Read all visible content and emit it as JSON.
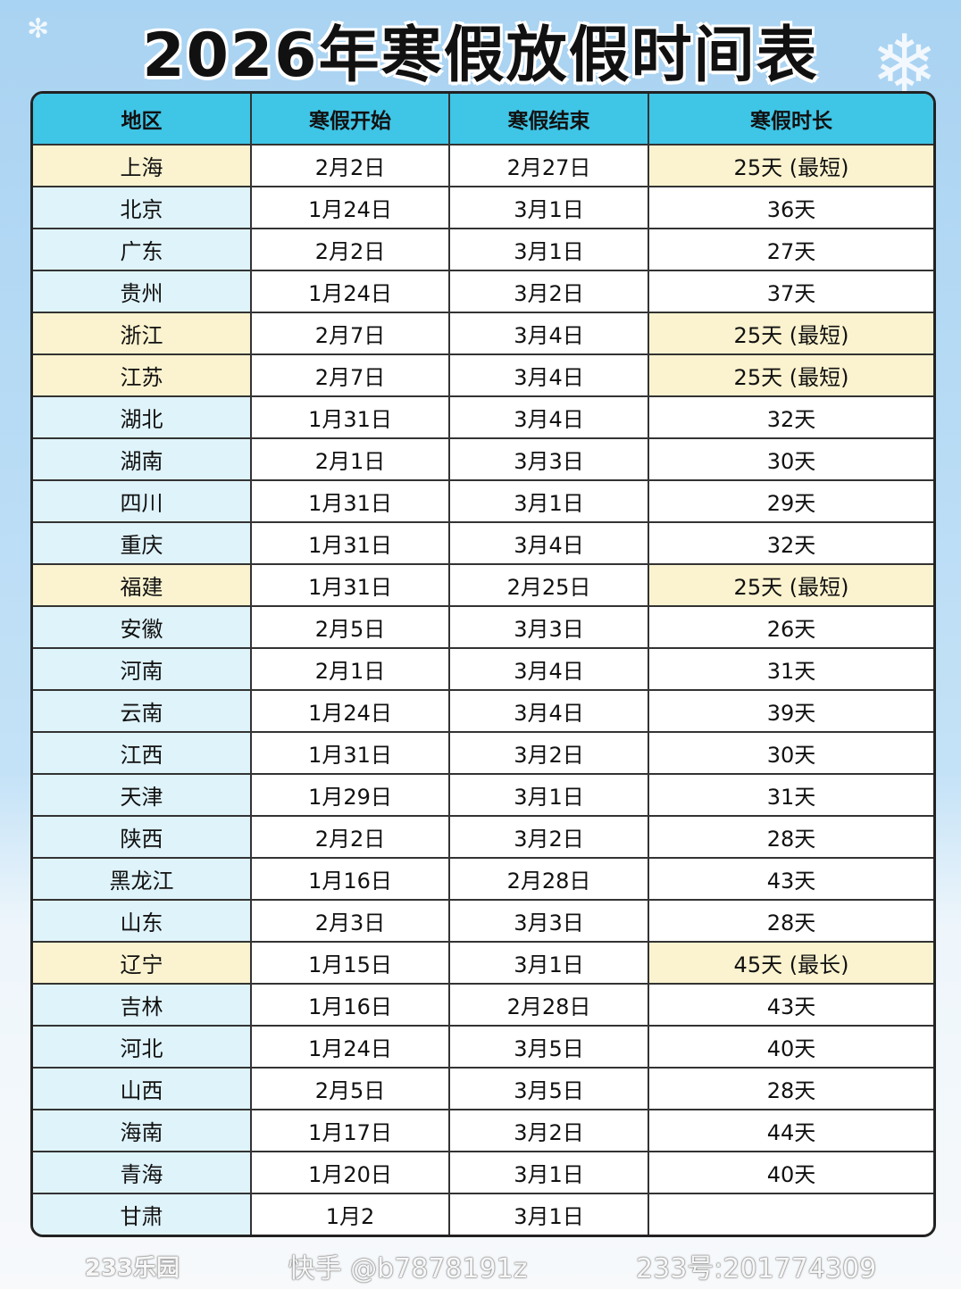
{
  "title": "2026年寒假放假时间表",
  "colors": {
    "header": "#3fc5e6",
    "region_bg": "#dff3fa",
    "highlight": "#fbf3cf"
  },
  "columns": [
    "地区",
    "寒假开始",
    "寒假结束",
    "寒假时长"
  ],
  "rows": [
    {
      "region": "上海",
      "start": "2月2日",
      "end": "2月27日",
      "days": "25天 (最短)",
      "highlight": true
    },
    {
      "region": "北京",
      "start": "1月24日",
      "end": "3月1日",
      "days": "36天"
    },
    {
      "region": "广东",
      "start": "2月2日",
      "end": "3月1日",
      "days": "27天"
    },
    {
      "region": "贵州",
      "start": "1月24日",
      "end": "3月2日",
      "days": "37天"
    },
    {
      "region": "浙江",
      "start": "2月7日",
      "end": "3月4日",
      "days": "25天 (最短)",
      "highlight": true
    },
    {
      "region": "江苏",
      "start": "2月7日",
      "end": "3月4日",
      "days": "25天 (最短)",
      "highlight": true
    },
    {
      "region": "湖北",
      "start": "1月31日",
      "end": "3月4日",
      "days": "32天"
    },
    {
      "region": "湖南",
      "start": "2月1日",
      "end": "3月3日",
      "days": "30天"
    },
    {
      "region": "四川",
      "start": "1月31日",
      "end": "3月1日",
      "days": "29天"
    },
    {
      "region": "重庆",
      "start": "1月31日",
      "end": "3月4日",
      "days": "32天"
    },
    {
      "region": "福建",
      "start": "1月31日",
      "end": "2月25日",
      "days": "25天 (最短)",
      "highlight": true
    },
    {
      "region": "安徽",
      "start": "2月5日",
      "end": "3月3日",
      "days": "26天"
    },
    {
      "region": "河南",
      "start": "2月1日",
      "end": "3月4日",
      "days": "31天"
    },
    {
      "region": "云南",
      "start": "1月24日",
      "end": "3月4日",
      "days": "39天"
    },
    {
      "region": "江西",
      "start": "1月31日",
      "end": "3月2日",
      "days": "30天"
    },
    {
      "region": "天津",
      "start": "1月29日",
      "end": "3月1日",
      "days": "31天"
    },
    {
      "region": "陕西",
      "start": "2月2日",
      "end": "3月2日",
      "days": "28天"
    },
    {
      "region": "黑龙江",
      "start": "1月16日",
      "end": "2月28日",
      "days": "43天"
    },
    {
      "region": "山东",
      "start": "2月3日",
      "end": "3月3日",
      "days": "28天"
    },
    {
      "region": "辽宁",
      "start": "1月15日",
      "end": "3月1日",
      "days": "45天 (最长)",
      "highlight": true
    },
    {
      "region": "吉林",
      "start": "1月16日",
      "end": "2月28日",
      "days": "43天"
    },
    {
      "region": "河北",
      "start": "1月24日",
      "end": "3月5日",
      "days": "40天"
    },
    {
      "region": "山西",
      "start": "2月5日",
      "end": "3月5日",
      "days": "28天"
    },
    {
      "region": "海南",
      "start": "1月17日",
      "end": "3月2日",
      "days": "44天"
    },
    {
      "region": "青海",
      "start": "1月20日",
      "end": "3月1日",
      "days": "40天"
    },
    {
      "region": "甘肃",
      "start": "1月2",
      "end": "3月1日",
      "days": ""
    }
  ],
  "watermarks": [
    "快手 @b7878191z",
    "233号:201774309",
    "233乐园"
  ]
}
